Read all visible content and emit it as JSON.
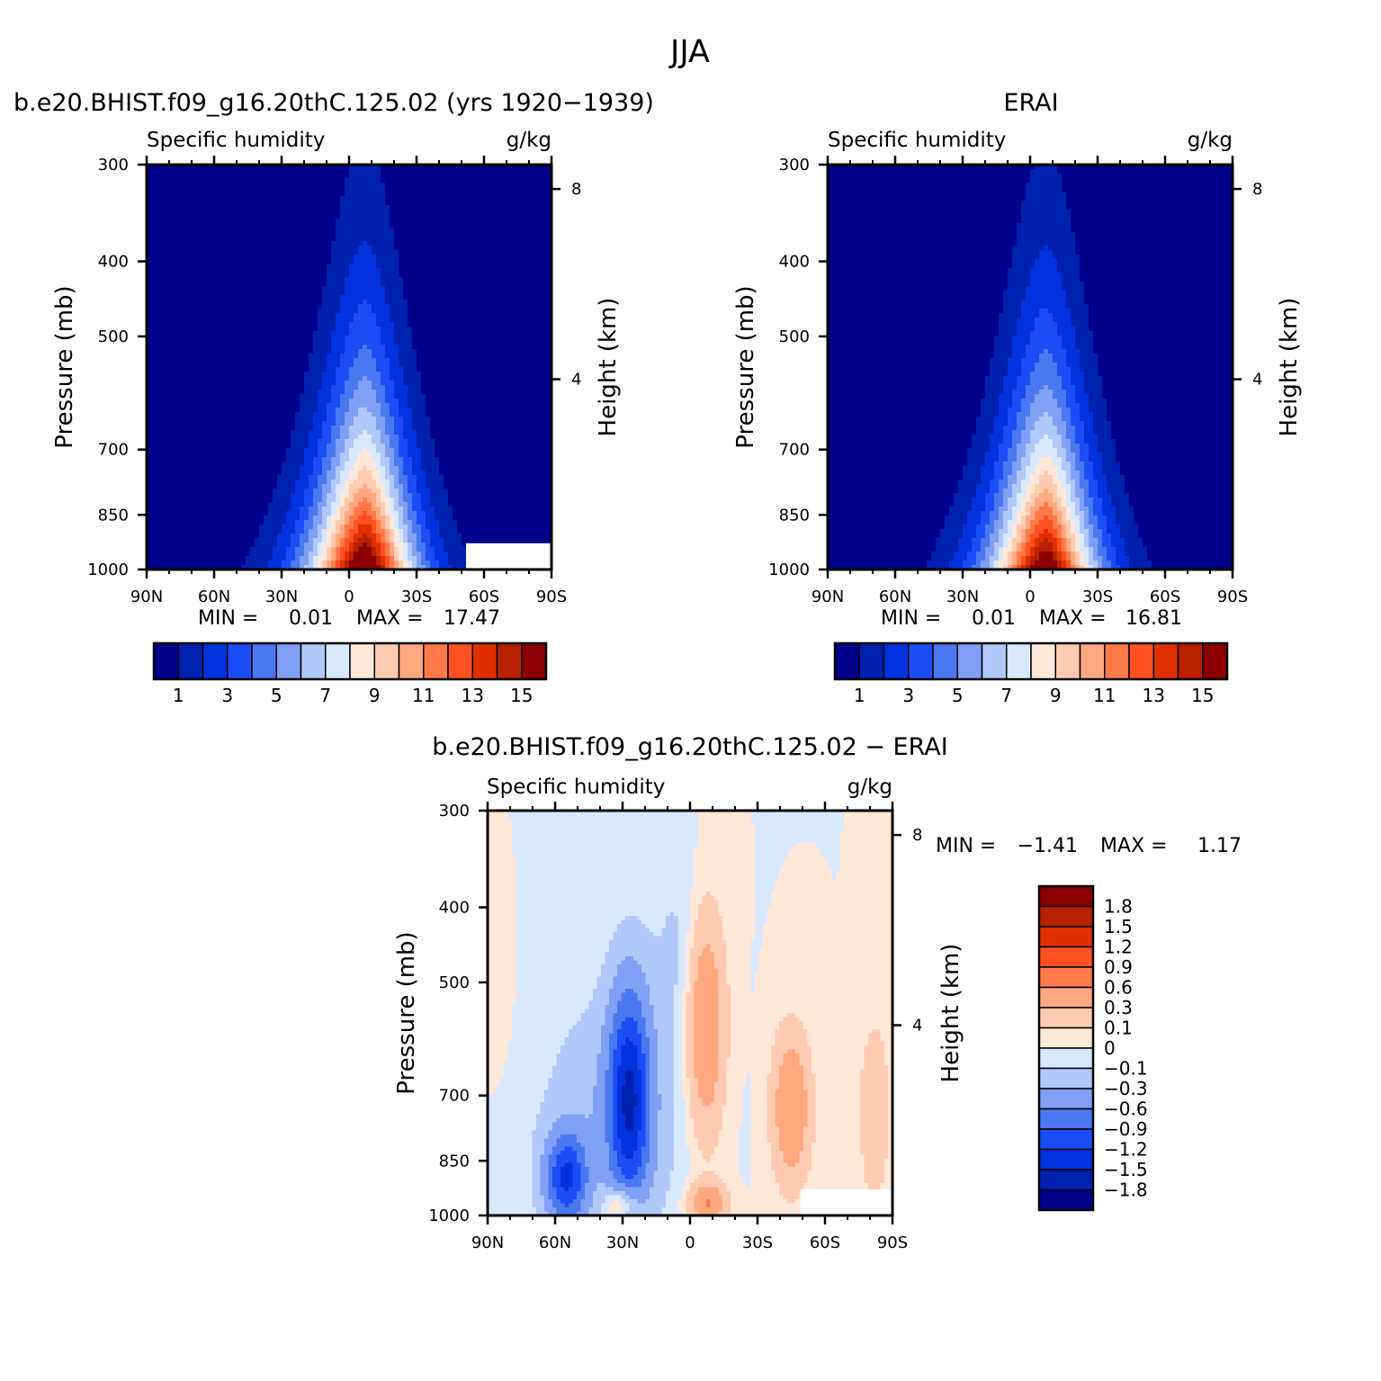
{
  "title": "JJA",
  "colors": {
    "abs": [
      "#00008b",
      "#0020b0",
      "#0033dd",
      "#1a4df5",
      "#4a78f0",
      "#7fa0f5",
      "#b0c8fa",
      "#d8e8ff",
      "#ffe8d8",
      "#ffcbb0",
      "#ffa880",
      "#ff7a48",
      "#ff5020",
      "#e03000",
      "#b82000",
      "#8b0000"
    ],
    "diff": [
      "#00008b",
      "#0020b0",
      "#0033dd",
      "#1a4df5",
      "#4a78f0",
      "#7fa0f5",
      "#b0c8fa",
      "#d8e8ff",
      "#ffe8d8",
      "#ffcbb0",
      "#ffa880",
      "#ff7a48",
      "#ff5020",
      "#e03000",
      "#b82000",
      "#8b0000"
    ]
  },
  "chart_data": [
    {
      "type": "heatmap",
      "panel_title": "b.e20.BHIST.f09_g16.20thC.125.02 (yrs 1920−1939)",
      "left_string": "Specific humidity",
      "right_string": "g/kg",
      "ylabel": "Pressure (mb)",
      "ylabel_right": "Height (km)",
      "xticklabels": [
        "90N",
        "60N",
        "30N",
        "0",
        "30S",
        "60S",
        "90S"
      ],
      "xlim": [
        90,
        -90
      ],
      "yticklabels": [
        "300",
        "400",
        "500",
        "700",
        "850",
        "1000"
      ],
      "yticks": [
        300,
        400,
        500,
        700,
        850,
        1000
      ],
      "ylim": [
        1000,
        300
      ],
      "height_ticks": [
        "8",
        "4"
      ],
      "min_label": "MIN =",
      "min_value": "0.01",
      "max_label": "MAX =",
      "max_value": "17.47",
      "peak_lat": -7,
      "peak_value": 17.47,
      "missing_region": {
        "lat_from": -52,
        "lat_to": -90,
        "p_from": 925,
        "p_to": 1000
      },
      "colorbar": {
        "levels": [
          "1",
          "3",
          "5",
          "7",
          "9",
          "11",
          "13",
          "15"
        ]
      }
    },
    {
      "type": "heatmap",
      "panel_title": "ERAI",
      "left_string": "Specific humidity",
      "right_string": "g/kg",
      "ylabel": "Pressure (mb)",
      "ylabel_right": "Height (km)",
      "xticklabels": [
        "90N",
        "60N",
        "30N",
        "0",
        "30S",
        "60S",
        "90S"
      ],
      "xlim": [
        90,
        -90
      ],
      "yticklabels": [
        "300",
        "400",
        "500",
        "700",
        "850",
        "1000"
      ],
      "yticks": [
        300,
        400,
        500,
        700,
        850,
        1000
      ],
      "ylim": [
        1000,
        300
      ],
      "height_ticks": [
        "8",
        "4"
      ],
      "min_label": "MIN =",
      "min_value": "0.01",
      "max_label": "MAX =",
      "max_value": "16.81",
      "peak_lat": -7,
      "peak_value": 16.81,
      "colorbar": {
        "levels": [
          "1",
          "3",
          "5",
          "7",
          "9",
          "11",
          "13",
          "15"
        ]
      }
    },
    {
      "type": "heatmap",
      "panel_title": "b.e20.BHIST.f09_g16.20thC.125.02 − ERAI",
      "left_string": "Specific humidity",
      "right_string": "g/kg",
      "ylabel": "Pressure (mb)",
      "ylabel_right": "Height (km)",
      "xticklabels": [
        "90N",
        "60N",
        "30N",
        "0",
        "30S",
        "60S",
        "90S"
      ],
      "xlim": [
        90,
        -90
      ],
      "yticklabels": [
        "300",
        "400",
        "500",
        "700",
        "850",
        "1000"
      ],
      "yticks": [
        300,
        400,
        500,
        700,
        850,
        1000
      ],
      "ylim": [
        1000,
        300
      ],
      "height_ticks": [
        "8",
        "4"
      ],
      "min_label": "MIN =",
      "min_value": "−1.41",
      "max_label": "MAX =",
      "max_value": "1.17",
      "missing_region": {
        "lat_from": -49,
        "lat_to": -90,
        "p_from": 925,
        "p_to": 1000
      },
      "colorbar": {
        "levels": [
          "1.8",
          "1.5",
          "1.2",
          "0.9",
          "0.6",
          "0.3",
          "0.1",
          "0",
          "−0.1",
          "−0.3",
          "−0.6",
          "−0.9",
          "−1.2",
          "−1.5",
          "−1.8"
        ]
      },
      "anomalies": [
        {
          "sign": "positive",
          "lat": -7,
          "p_top": 420,
          "p_bottom": 770,
          "peak": 0.6
        },
        {
          "sign": "positive",
          "lat": 87,
          "p_top": 430,
          "p_bottom": 620,
          "peak": 0.1
        },
        {
          "sign": "positive",
          "lat": -45,
          "p_top": 600,
          "p_bottom": 880,
          "peak": 0.6
        },
        {
          "sign": "positive",
          "lat": -82,
          "p_top": 590,
          "p_bottom": 920,
          "peak": 0.3
        },
        {
          "sign": "positive",
          "lat": 30,
          "p_top": 930,
          "p_bottom": 1000,
          "peak": 0.6
        },
        {
          "sign": "positive",
          "lat": -8,
          "p_top": 930,
          "p_bottom": 1000,
          "peak": 0.6
        },
        {
          "sign": "negative",
          "lat": 27,
          "p_top": 520,
          "p_bottom": 950,
          "peak": -1.41
        },
        {
          "sign": "negative",
          "lat": 55,
          "p_top": 800,
          "p_bottom": 1000,
          "peak": -1.2
        }
      ]
    }
  ]
}
